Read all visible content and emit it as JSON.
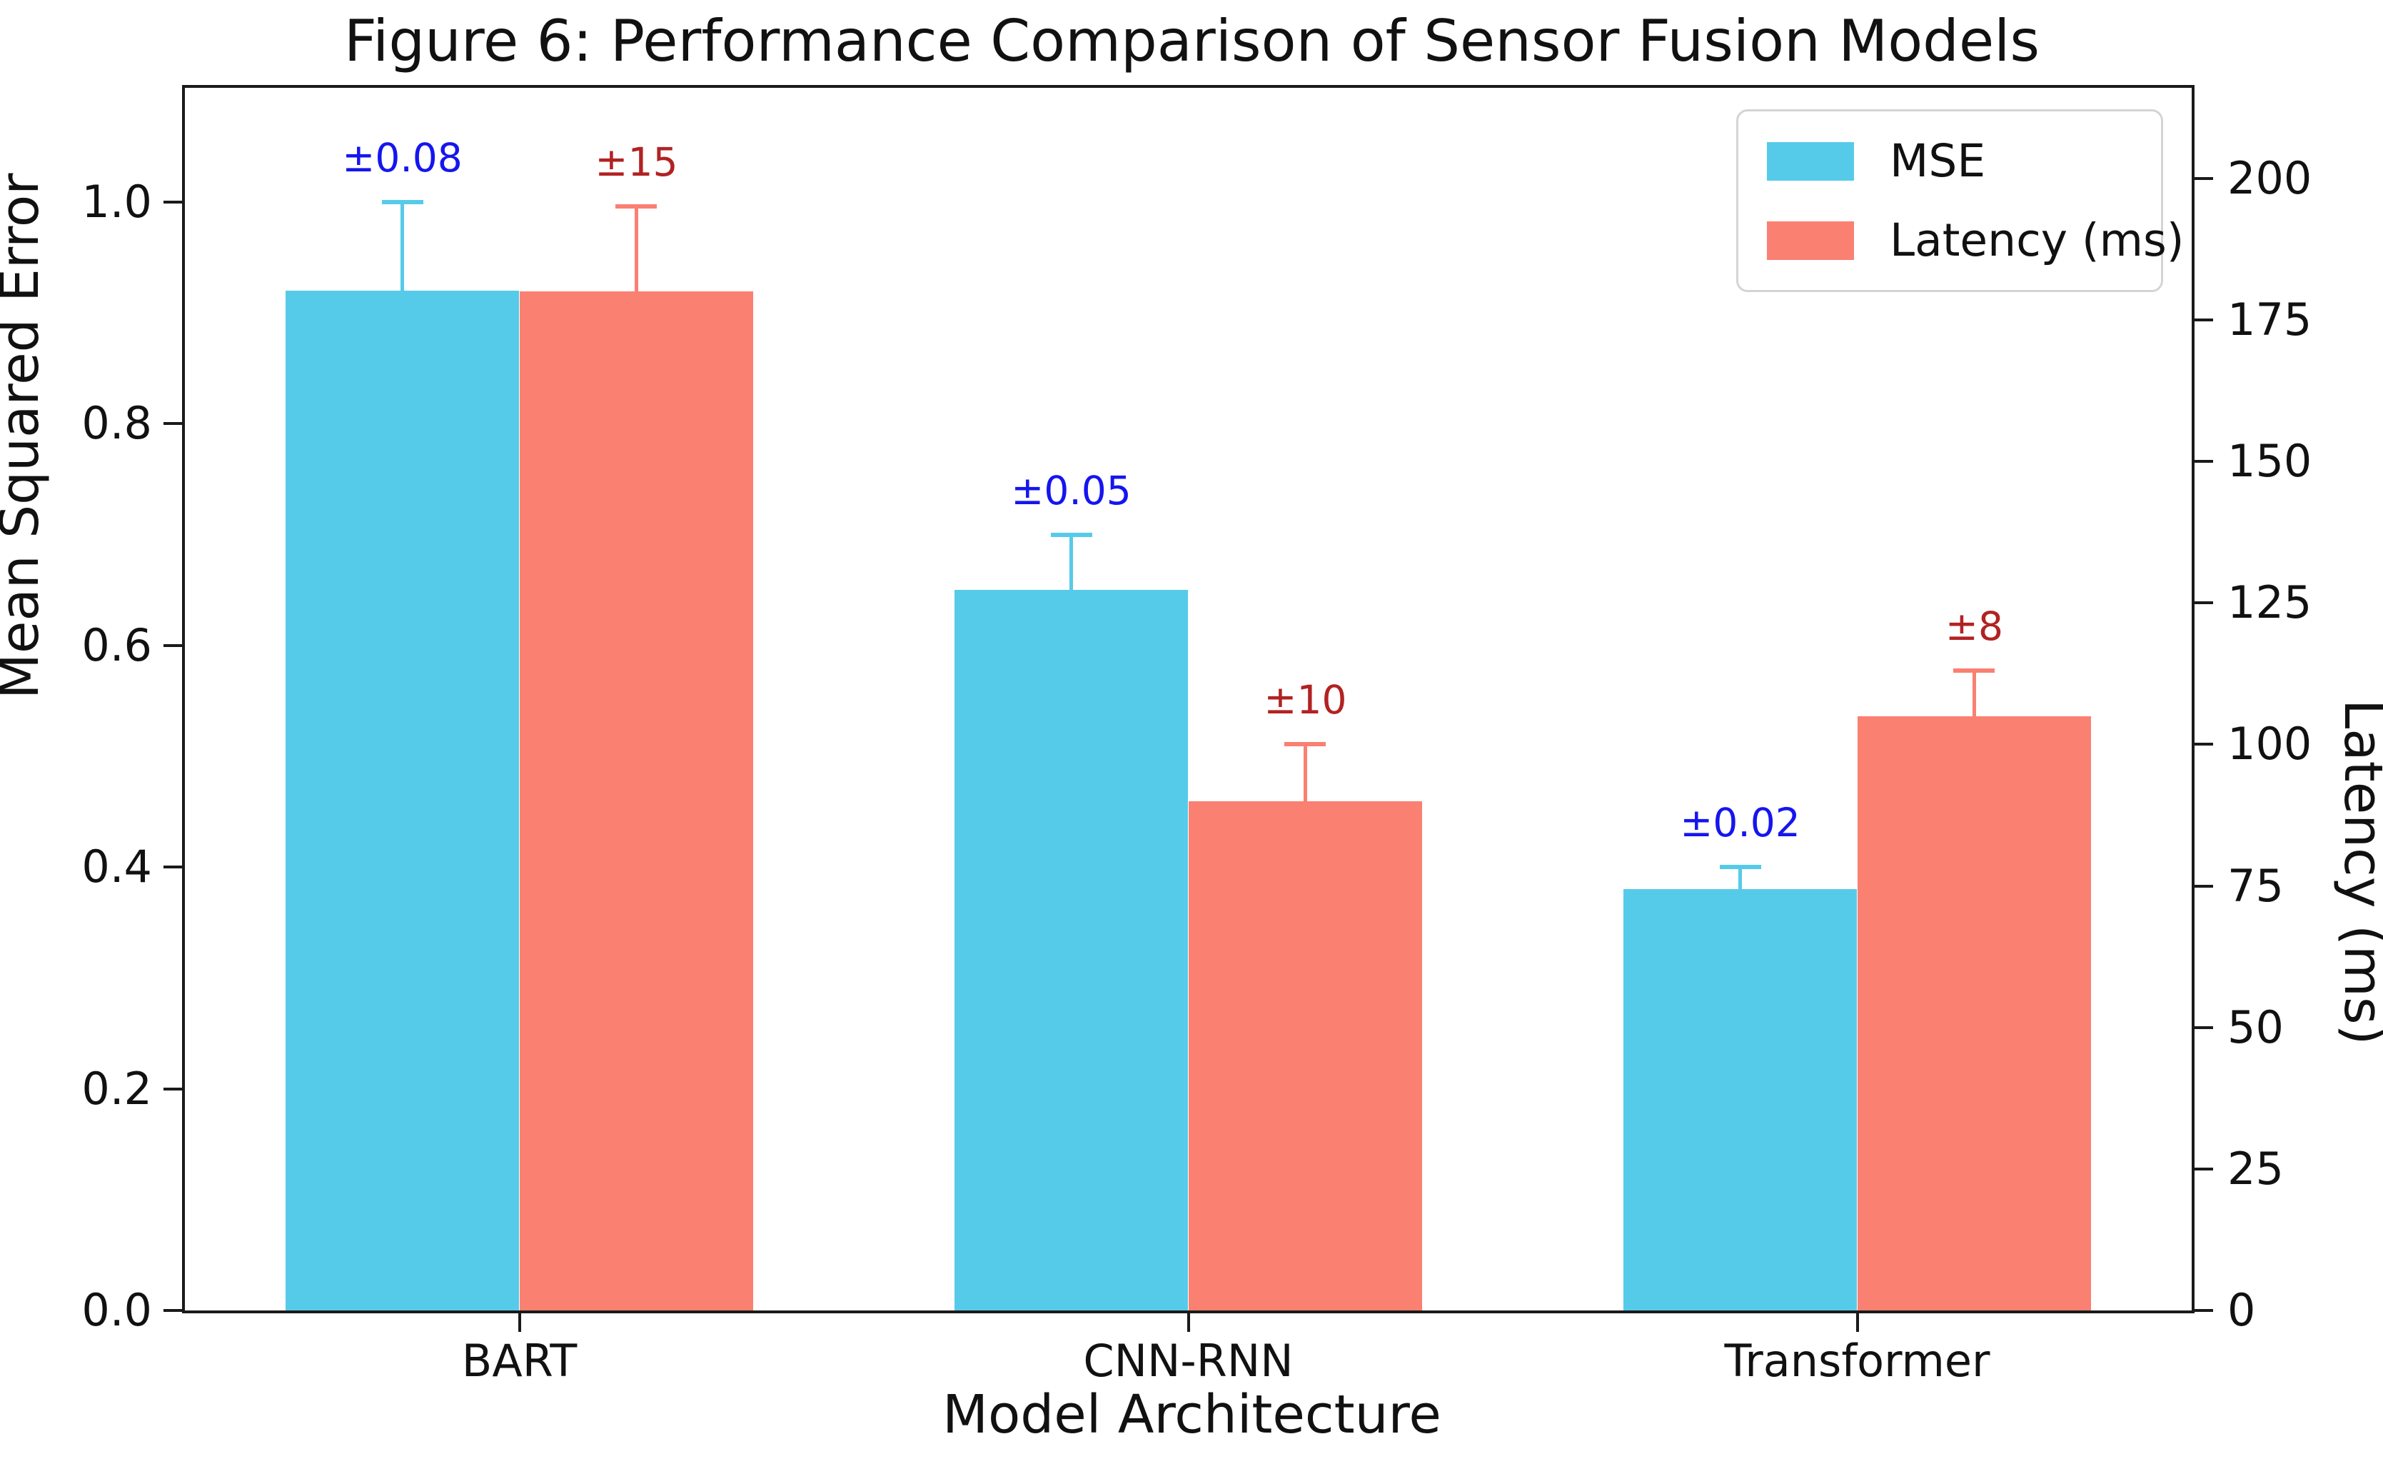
{
  "chart_data": {
    "type": "bar",
    "title": "Figure 6: Performance Comparison of Sensor Fusion Models",
    "xlabel": "Model Architecture",
    "ylabel_left": "Mean Squared Error",
    "ylabel_right": "Latency (ms)",
    "categories": [
      "BART",
      "CNN-RNN",
      "Transformer"
    ],
    "series": [
      {
        "name": "MSE",
        "axis": "left",
        "color": "#56CBE9",
        "values": [
          0.92,
          0.65,
          0.38
        ],
        "errors": [
          0.08,
          0.05,
          0.02
        ],
        "error_labels": [
          "±0.08",
          "±0.05",
          "±0.02"
        ],
        "error_label_color": "#1515EF"
      },
      {
        "name": "Latency (ms)",
        "axis": "right",
        "color": "#FA8072",
        "values": [
          180,
          90,
          105
        ],
        "errors": [
          15,
          10,
          8
        ],
        "error_labels": [
          "±15",
          "±10",
          "±8"
        ],
        "error_label_color": "#B22222"
      }
    ],
    "left_axis": {
      "tick_labels": [
        "0.0",
        "0.2",
        "0.4",
        "0.6",
        "0.8",
        "1.0"
      ],
      "tick_values": [
        0,
        0.2,
        0.4,
        0.6,
        0.8,
        1.0
      ],
      "range": [
        0,
        1.103
      ]
    },
    "right_axis": {
      "tick_labels": [
        "0",
        "25",
        "50",
        "75",
        "100",
        "125",
        "150",
        "175",
        "200"
      ],
      "tick_values": [
        0,
        25,
        50,
        75,
        100,
        125,
        150,
        175,
        200
      ],
      "range": [
        0,
        216
      ]
    },
    "legend": {
      "position": "upper right",
      "items": [
        {
          "label": "MSE",
          "color": "#56CBE9"
        },
        {
          "label": "Latency (ms)",
          "color": "#FA8072"
        }
      ]
    },
    "bar_width_fraction": 0.35,
    "grid": false,
    "background": "#ffffff"
  }
}
